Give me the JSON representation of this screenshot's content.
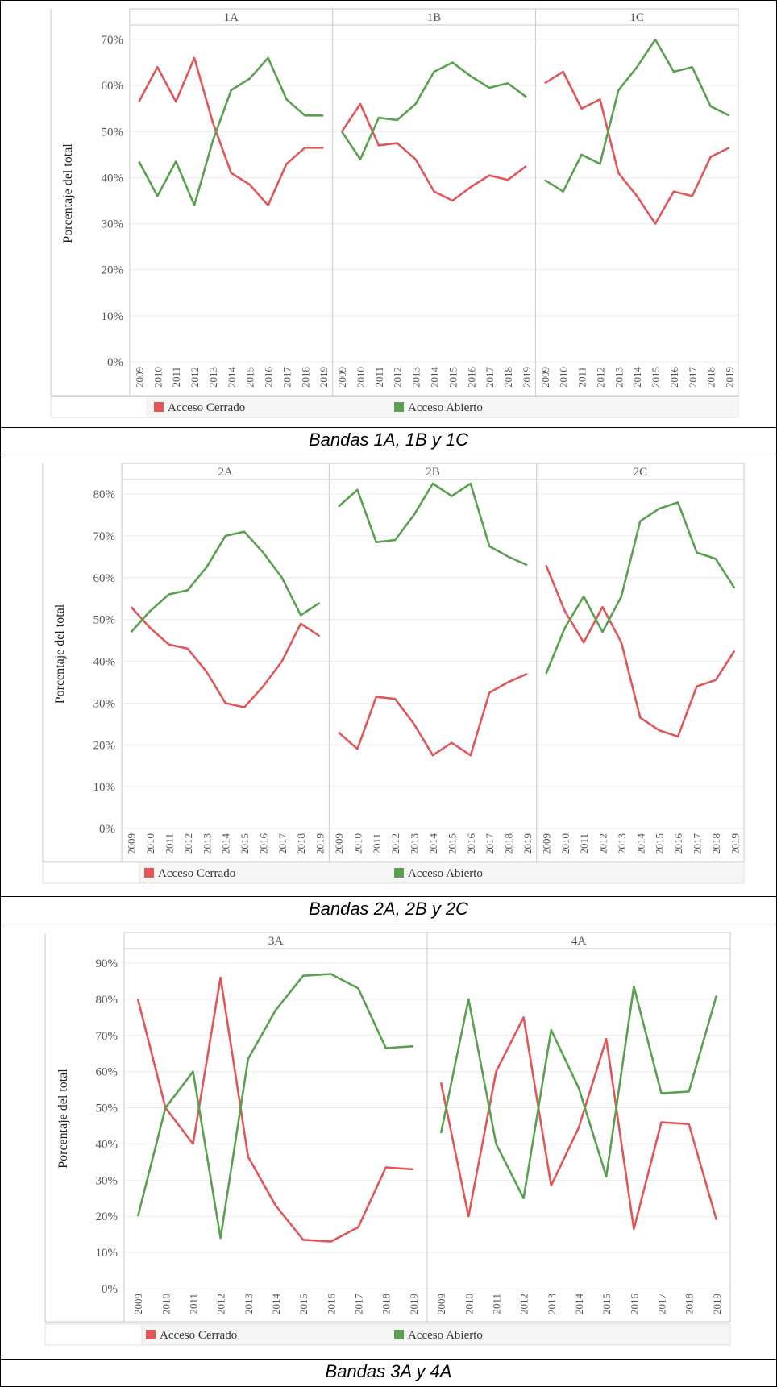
{
  "colors": {
    "closed": "#e15759",
    "open": "#59a14f",
    "grid": "#ececec",
    "frame": "#c8c8c8",
    "text": "#555555"
  },
  "legend": {
    "closed_label": "Acceso Cerrado",
    "open_label": "Acceso Abierto"
  },
  "chart_data": [
    {
      "type": "line",
      "caption": "Bandas 1A, 1B y 1C",
      "ylabel": "Porcentaje del total",
      "ylim": [
        0,
        70
      ],
      "yticks": [
        "0%",
        "10%",
        "20%",
        "30%",
        "40%",
        "50%",
        "60%",
        "70%"
      ],
      "ytick_values": [
        0,
        10,
        20,
        30,
        40,
        50,
        60,
        70
      ],
      "x": [
        "2009",
        "2010",
        "2011",
        "2012",
        "2013",
        "2014",
        "2015",
        "2016",
        "2017",
        "2018",
        "2019"
      ],
      "panels": [
        {
          "name": "1A",
          "series": [
            {
              "name": "Acceso Cerrado",
              "values": [
                56.5,
                64,
                56.5,
                66,
                52,
                41,
                38.5,
                34,
                43,
                46.5,
                46.5
              ]
            },
            {
              "name": "Acceso Abierto",
              "values": [
                43.5,
                36,
                43.5,
                34,
                48,
                59,
                61.5,
                66,
                57,
                53.5,
                53.5
              ]
            }
          ]
        },
        {
          "name": "1B",
          "series": [
            {
              "name": "Acceso Cerrado",
              "values": [
                50,
                56,
                47,
                47.5,
                44,
                37,
                35,
                38,
                40.5,
                39.5,
                42.5
              ]
            },
            {
              "name": "Acceso Abierto",
              "values": [
                50,
                44,
                53,
                52.5,
                56,
                63,
                65,
                62,
                59.5,
                60.5,
                57.5
              ]
            }
          ]
        },
        {
          "name": "1C",
          "series": [
            {
              "name": "Acceso Cerrado",
              "values": [
                60.5,
                63,
                55,
                57,
                41,
                36,
                30,
                37,
                36,
                44.5,
                46.5
              ]
            },
            {
              "name": "Acceso Abierto",
              "values": [
                39.5,
                37,
                45,
                43,
                59,
                64,
                70,
                63,
                64,
                55.5,
                53.5
              ]
            }
          ]
        }
      ]
    },
    {
      "type": "line",
      "caption": "Bandas 2A, 2B y 2C",
      "ylabel": "Porcentaje del total",
      "ylim": [
        0,
        80
      ],
      "yticks": [
        "0%",
        "10%",
        "20%",
        "30%",
        "40%",
        "50%",
        "60%",
        "70%",
        "80%"
      ],
      "ytick_values": [
        0,
        10,
        20,
        30,
        40,
        50,
        60,
        70,
        80
      ],
      "x": [
        "2009",
        "2010",
        "2011",
        "2012",
        "2013",
        "2014",
        "2015",
        "2016",
        "2017",
        "2018",
        "2019"
      ],
      "panels": [
        {
          "name": "2A",
          "series": [
            {
              "name": "Acceso Cerrado",
              "values": [
                53,
                48,
                44,
                43,
                37.5,
                30,
                29,
                34,
                40,
                49,
                46
              ]
            },
            {
              "name": "Acceso Abierto",
              "values": [
                47,
                52,
                56,
                57,
                62.5,
                70,
                71,
                66,
                60,
                51,
                54
              ]
            }
          ]
        },
        {
          "name": "2B",
          "series": [
            {
              "name": "Acceso Cerrado",
              "values": [
                23,
                19,
                31.5,
                31,
                25,
                17.5,
                20.5,
                17.5,
                32.5,
                35,
                37
              ]
            },
            {
              "name": "Acceso Abierto",
              "values": [
                77,
                81,
                68.5,
                69,
                75,
                82.5,
                79.5,
                82.5,
                67.5,
                65,
                63
              ]
            }
          ]
        },
        {
          "name": "2C",
          "series": [
            {
              "name": "Acceso Cerrado",
              "values": [
                63,
                52,
                44.5,
                53,
                44.5,
                26.5,
                23.5,
                22,
                34,
                35.5,
                42.5
              ]
            },
            {
              "name": "Acceso Abierto",
              "values": [
                37,
                48,
                55.5,
                47,
                55.5,
                73.5,
                76.5,
                78,
                66,
                64.5,
                57.5
              ]
            }
          ]
        }
      ]
    },
    {
      "type": "line",
      "caption": "Bandas 3A y 4A",
      "ylabel": "Porcentaje del total",
      "ylim": [
        0,
        90
      ],
      "yticks": [
        "0%",
        "10%",
        "20%",
        "30%",
        "40%",
        "50%",
        "60%",
        "70%",
        "80%",
        "90%"
      ],
      "ytick_values": [
        0,
        10,
        20,
        30,
        40,
        50,
        60,
        70,
        80,
        90
      ],
      "x": [
        "2009",
        "2010",
        "2011",
        "2012",
        "2013",
        "2014",
        "2015",
        "2016",
        "2017",
        "2018",
        "2019"
      ],
      "panels": [
        {
          "name": "3A",
          "series": [
            {
              "name": "Acceso Cerrado",
              "values": [
                80,
                50,
                40,
                86,
                36.5,
                23,
                13.5,
                13,
                17,
                33.5,
                33
              ]
            },
            {
              "name": "Acceso Abierto",
              "values": [
                20,
                50,
                60,
                14,
                63.5,
                77,
                86.5,
                87,
                83,
                66.5,
                67
              ]
            }
          ]
        },
        {
          "name": "4A",
          "series": [
            {
              "name": "Acceso Cerrado",
              "values": [
                57,
                20,
                60,
                75,
                28.5,
                44.5,
                69,
                16.5,
                46,
                45.5,
                19
              ]
            },
            {
              "name": "Acceso Abierto",
              "values": [
                43,
                80,
                40,
                25,
                71.5,
                55.5,
                31,
                83.5,
                54,
                54.5,
                81
              ]
            }
          ]
        }
      ]
    }
  ]
}
